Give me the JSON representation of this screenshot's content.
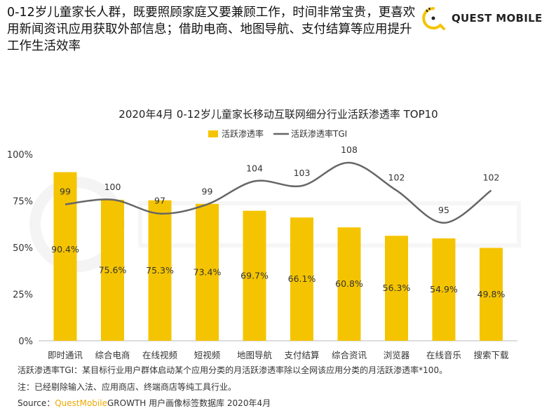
{
  "headline": "0-12岁儿童家长人群，既要照顾家庭又要兼顾工作，时间非常宝贵，更喜欢用新闻资讯应用获取外部信息；借助电商、地图导航、支付结算等应用提升工作生活效率",
  "logo": {
    "text": "QUEST MOBILE",
    "color": "#f5c400"
  },
  "watermark": "QUEST MOBILE",
  "notes": {
    "tgi": "活跃渗透率TGI：某目标行业用户群体启动某个应用分类的月活跃渗透率除以全网该应用分类的月活跃渗透率*100。",
    "note": "注：已经剔除输入法、应用商店、终端商店等纯工具行业。",
    "source_prefix": "Source：",
    "source_brand": "QuestMobile",
    "source_rest": "GROWTH 用户画像标签数据库 2020年4月"
  },
  "chart_data": {
    "type": "bar+line",
    "title": "2020年4月 0-12岁儿童家长移动互联网细分行业活跃渗透率 TOP10",
    "legend_position": "top",
    "categories": [
      "即时通讯",
      "综合电商",
      "在线视频",
      "短视频",
      "地图导航",
      "支付结算",
      "综合资讯",
      "浏览器",
      "在线音乐",
      "搜索下载"
    ],
    "ylim": [
      0,
      100
    ],
    "yticks": [
      "0%",
      "25%",
      "50%",
      "75%",
      "100%"
    ],
    "grid": false,
    "series": [
      {
        "name": "活跃渗透率",
        "type": "bar",
        "color": "#f5c400",
        "values": [
          90.4,
          75.6,
          75.3,
          73.4,
          69.7,
          66.1,
          60.8,
          56.3,
          54.9,
          49.8
        ],
        "labels": [
          "90.4%",
          "75.6%",
          "75.3%",
          "73.4%",
          "69.7%",
          "66.1%",
          "60.8%",
          "56.3%",
          "54.9%",
          "49.8%"
        ]
      },
      {
        "name": "活跃渗透率TGI",
        "type": "line",
        "color": "#666666",
        "values": [
          99,
          100,
          97,
          99,
          104,
          103,
          108,
          102,
          95,
          102
        ]
      }
    ]
  }
}
